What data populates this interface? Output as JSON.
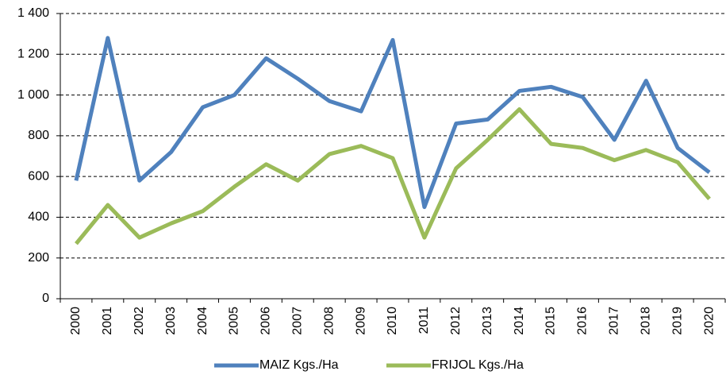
{
  "chart_data": {
    "type": "line",
    "categories": [
      "2000",
      "2001",
      "2002",
      "2003",
      "2004",
      "2005",
      "2006",
      "2007",
      "2008",
      "2009",
      "2010",
      "2011",
      "2012",
      "2013",
      "2014",
      "2015",
      "2016",
      "2017",
      "2018",
      "2019",
      "2020"
    ],
    "series": [
      {
        "name": "MAIZ Kgs./Ha",
        "color": "#4f81bd",
        "values": [
          580,
          1280,
          580,
          720,
          940,
          1000,
          1180,
          1080,
          970,
          920,
          1270,
          450,
          860,
          880,
          1020,
          1040,
          990,
          780,
          1070,
          740,
          620
        ]
      },
      {
        "name": "FRIJOL Kgs./Ha",
        "color": "#9bbb59",
        "values": [
          270,
          460,
          300,
          370,
          430,
          550,
          660,
          580,
          710,
          750,
          690,
          300,
          640,
          780,
          930,
          760,
          740,
          680,
          730,
          670,
          490
        ]
      }
    ],
    "ylim": [
      0,
      1400
    ],
    "yticks": [
      0,
      200,
      400,
      600,
      800,
      {
        "value": 1000,
        "label": "1 000"
      },
      {
        "value": 1200,
        "label": "1 200"
      },
      {
        "value": 1400,
        "label": "1 400"
      }
    ],
    "grid": true,
    "legend": "bottom"
  }
}
